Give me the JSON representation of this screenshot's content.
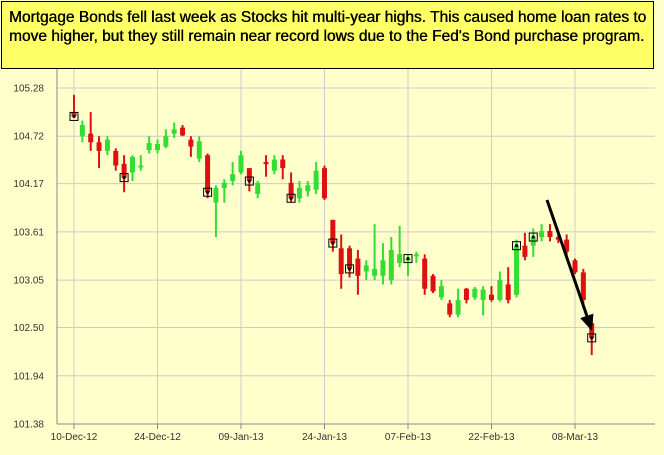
{
  "annotation": {
    "text": "Mortgage Bonds fell last week as Stocks hit multi-year highs.  This caused home loan rates to move higher, but they still remain near record lows due to the Fed's Bond purchase program."
  },
  "colors": {
    "background": "#ffffcc",
    "grid": "#cccccc",
    "up_candle": "#33dd33",
    "down_candle": "#dd1111",
    "callout_fill": "#ffff66",
    "arrow": "#000000"
  },
  "chart_data": {
    "type": "candlestick",
    "title": "",
    "xlabel": "",
    "ylabel": "",
    "ylim": [
      101.38,
      105.28
    ],
    "y_ticks": [
      "105.28",
      "104.72",
      "104.17",
      "103.61",
      "103.05",
      "102.50",
      "101.94",
      "101.38"
    ],
    "x_tick_labels": [
      "10-Dec-12",
      "24-Dec-12",
      "09-Jan-13",
      "24-Jan-13",
      "07-Feb-13",
      "22-Feb-13",
      "08-Mar-13"
    ],
    "x_tick_indices": [
      0,
      10,
      20,
      30,
      40,
      50,
      60
    ],
    "grid": true,
    "legend": "none",
    "candles": [
      {
        "open": 105.0,
        "high": 105.2,
        "low": 104.95,
        "close": 104.95,
        "marker": true
      },
      {
        "open": 104.72,
        "high": 104.9,
        "low": 104.65,
        "close": 104.85
      },
      {
        "open": 104.75,
        "high": 105.0,
        "low": 104.55,
        "close": 104.65
      },
      {
        "open": 104.65,
        "high": 104.72,
        "low": 104.35,
        "close": 104.55
      },
      {
        "open": 104.55,
        "high": 104.72,
        "low": 104.5,
        "close": 104.68
      },
      {
        "open": 104.55,
        "high": 104.58,
        "low": 104.32,
        "close": 104.38
      },
      {
        "open": 104.4,
        "high": 104.5,
        "low": 104.07,
        "close": 104.24,
        "marker": true
      },
      {
        "open": 104.3,
        "high": 104.5,
        "low": 104.2,
        "close": 104.48
      },
      {
        "open": 104.38,
        "high": 104.5,
        "low": 104.32,
        "close": 104.38
      },
      {
        "open": 104.56,
        "high": 104.72,
        "low": 104.52,
        "close": 104.64
      },
      {
        "open": 104.56,
        "high": 104.68,
        "low": 104.52,
        "close": 104.63
      },
      {
        "open": 104.6,
        "high": 104.8,
        "low": 104.58,
        "close": 104.72
      },
      {
        "open": 104.75,
        "high": 104.88,
        "low": 104.7,
        "close": 104.8
      },
      {
        "open": 104.82,
        "high": 104.85,
        "low": 104.72,
        "close": 104.73
      },
      {
        "open": 104.68,
        "high": 104.72,
        "low": 104.48,
        "close": 104.6
      },
      {
        "open": 104.46,
        "high": 104.72,
        "low": 104.42,
        "close": 104.66
      },
      {
        "open": 104.5,
        "high": 104.52,
        "low": 104.0,
        "close": 104.07,
        "marker": true
      },
      {
        "open": 103.95,
        "high": 104.15,
        "low": 103.55,
        "close": 104.12
      },
      {
        "open": 104.12,
        "high": 104.22,
        "low": 103.95,
        "close": 104.18
      },
      {
        "open": 104.2,
        "high": 104.42,
        "low": 104.15,
        "close": 104.28
      },
      {
        "open": 104.3,
        "high": 104.55,
        "low": 104.28,
        "close": 104.5
      },
      {
        "open": 104.35,
        "high": 104.35,
        "low": 104.08,
        "close": 104.2,
        "marker": true
      },
      {
        "open": 104.05,
        "high": 104.2,
        "low": 104.0,
        "close": 104.18
      },
      {
        "open": 104.42,
        "high": 104.5,
        "low": 104.25,
        "close": 104.4
      },
      {
        "open": 104.32,
        "high": 104.5,
        "low": 104.28,
        "close": 104.45
      },
      {
        "open": 104.45,
        "high": 104.5,
        "low": 104.22,
        "close": 104.35
      },
      {
        "open": 104.18,
        "high": 104.3,
        "low": 103.95,
        "close": 104.0,
        "marker": true
      },
      {
        "open": 104.0,
        "high": 104.2,
        "low": 103.95,
        "close": 104.12
      },
      {
        "open": 104.08,
        "high": 104.2,
        "low": 104.02,
        "close": 104.15
      },
      {
        "open": 104.1,
        "high": 104.42,
        "low": 104.05,
        "close": 104.32
      },
      {
        "open": 104.35,
        "high": 104.38,
        "low": 103.98,
        "close": 104.0
      },
      {
        "open": 103.75,
        "high": 103.75,
        "low": 103.38,
        "close": 103.48,
        "marker": true
      },
      {
        "open": 103.42,
        "high": 103.58,
        "low": 102.95,
        "close": 103.12
      },
      {
        "open": 103.42,
        "high": 103.45,
        "low": 103.08,
        "close": 103.18,
        "marker": true
      },
      {
        "open": 103.3,
        "high": 103.4,
        "low": 102.88,
        "close": 103.1
      },
      {
        "open": 103.15,
        "high": 103.28,
        "low": 103.05,
        "close": 103.22
      },
      {
        "open": 103.1,
        "high": 103.7,
        "low": 103.05,
        "close": 103.18
      },
      {
        "open": 103.1,
        "high": 103.48,
        "low": 103.0,
        "close": 103.28
      },
      {
        "open": 103.05,
        "high": 103.55,
        "low": 103.0,
        "close": 103.4
      },
      {
        "open": 103.25,
        "high": 103.68,
        "low": 103.2,
        "close": 103.35
      },
      {
        "open": 103.28,
        "high": 103.35,
        "low": 103.1,
        "close": 103.3,
        "marker": true
      },
      {
        "open": 103.35,
        "high": 103.38,
        "low": 103.25,
        "close": 103.35
      },
      {
        "open": 103.3,
        "high": 103.35,
        "low": 102.88,
        "close": 102.95
      },
      {
        "open": 103.1,
        "high": 103.12,
        "low": 102.9,
        "close": 102.92
      },
      {
        "open": 102.85,
        "high": 103.05,
        "low": 102.82,
        "close": 102.98
      },
      {
        "open": 102.78,
        "high": 102.82,
        "low": 102.62,
        "close": 102.65
      },
      {
        "open": 102.65,
        "high": 102.95,
        "low": 102.62,
        "close": 102.82
      },
      {
        "open": 102.95,
        "high": 102.96,
        "low": 102.78,
        "close": 102.82
      },
      {
        "open": 102.85,
        "high": 102.97,
        "low": 102.82,
        "close": 102.95
      },
      {
        "open": 102.82,
        "high": 102.98,
        "low": 102.64,
        "close": 102.94
      },
      {
        "open": 102.88,
        "high": 102.98,
        "low": 102.8,
        "close": 102.82
      },
      {
        "open": 102.82,
        "high": 103.15,
        "low": 102.8,
        "close": 103.05
      },
      {
        "open": 103.0,
        "high": 103.2,
        "low": 102.78,
        "close": 102.82
      },
      {
        "open": 102.88,
        "high": 103.52,
        "low": 102.85,
        "close": 103.45,
        "marker": true
      },
      {
        "open": 103.45,
        "high": 103.6,
        "low": 103.28,
        "close": 103.32
      },
      {
        "open": 103.45,
        "high": 103.65,
        "low": 103.32,
        "close": 103.55,
        "marker": true
      },
      {
        "open": 103.55,
        "high": 103.7,
        "low": 103.5,
        "close": 103.62
      },
      {
        "open": 103.62,
        "high": 103.7,
        "low": 103.5,
        "close": 103.55
      },
      {
        "open": 103.55,
        "high": 103.62,
        "low": 103.48,
        "close": 103.52
      },
      {
        "open": 103.52,
        "high": 103.58,
        "low": 103.32,
        "close": 103.38
      },
      {
        "open": 103.28,
        "high": 103.3,
        "low": 103.12,
        "close": 103.14
      },
      {
        "open": 103.14,
        "high": 103.18,
        "low": 102.72,
        "close": 102.82
      },
      {
        "open": 102.55,
        "high": 102.58,
        "low": 102.18,
        "close": 102.38,
        "marker": true
      }
    ],
    "annotation_arrow": "downward trend arrow toward 08-Mar-13"
  }
}
